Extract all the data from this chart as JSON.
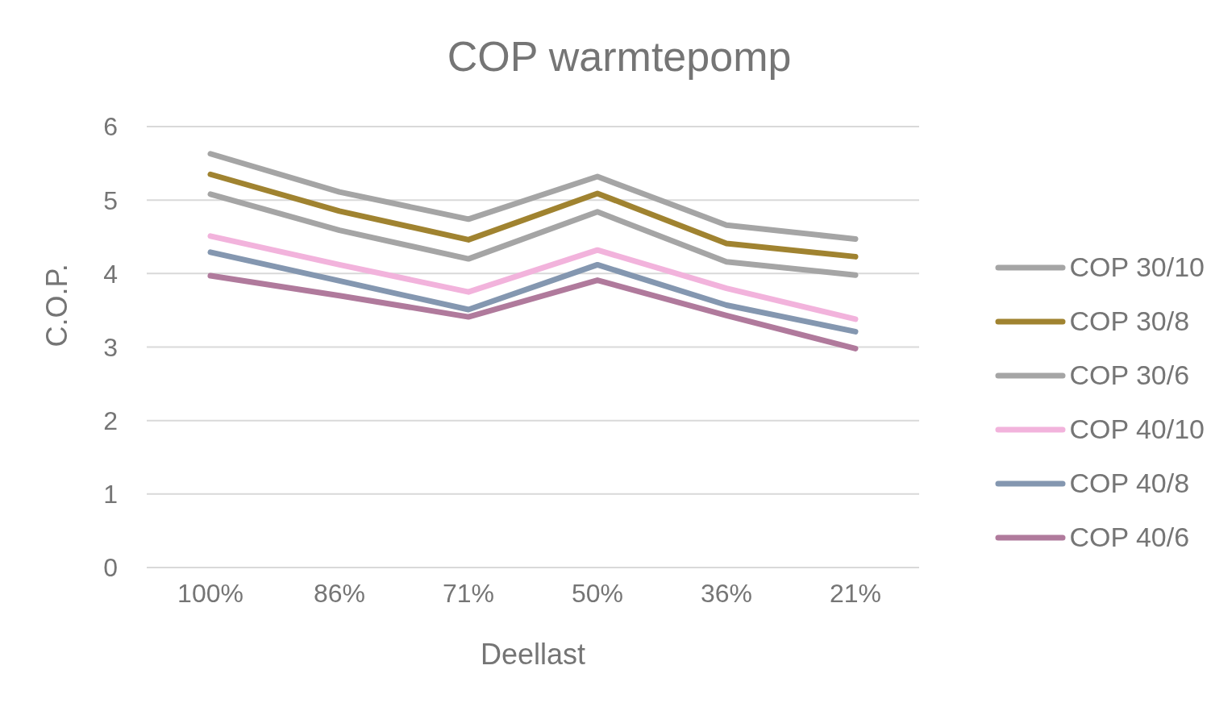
{
  "chart_data": {
    "type": "line",
    "title": "COP warmtepomp",
    "xlabel": "Deellast",
    "ylabel": "C.O.P.",
    "categories": [
      "100%",
      "86%",
      "71%",
      "50%",
      "36%",
      "21%"
    ],
    "ylim": [
      0,
      6
    ],
    "yticks": [
      0,
      1,
      2,
      3,
      4,
      5,
      6
    ],
    "grid": "y",
    "legend": "right",
    "marker": "none",
    "line_style": "solid",
    "series": [
      {
        "name": "COP 30/10",
        "color": "#a5a5a5",
        "values": [
          5.63,
          5.11,
          4.74,
          5.32,
          4.66,
          4.47
        ]
      },
      {
        "name": "COP 30/8",
        "color": "#a08330",
        "values": [
          5.35,
          4.85,
          4.46,
          5.09,
          4.41,
          4.23
        ]
      },
      {
        "name": "COP 30/6",
        "color": "#a5a5a5",
        "values": [
          5.08,
          4.59,
          4.2,
          4.84,
          4.16,
          3.98
        ]
      },
      {
        "name": "COP 40/10",
        "color": "#f2b3dc",
        "values": [
          4.51,
          4.12,
          3.75,
          4.32,
          3.8,
          3.38
        ]
      },
      {
        "name": "COP 40/8",
        "color": "#8497b0",
        "values": [
          4.29,
          3.9,
          3.51,
          4.12,
          3.57,
          3.21
        ]
      },
      {
        "name": "COP 40/6",
        "color": "#b07a9c",
        "values": [
          3.97,
          3.7,
          3.41,
          3.91,
          3.43,
          2.98
        ]
      }
    ]
  }
}
